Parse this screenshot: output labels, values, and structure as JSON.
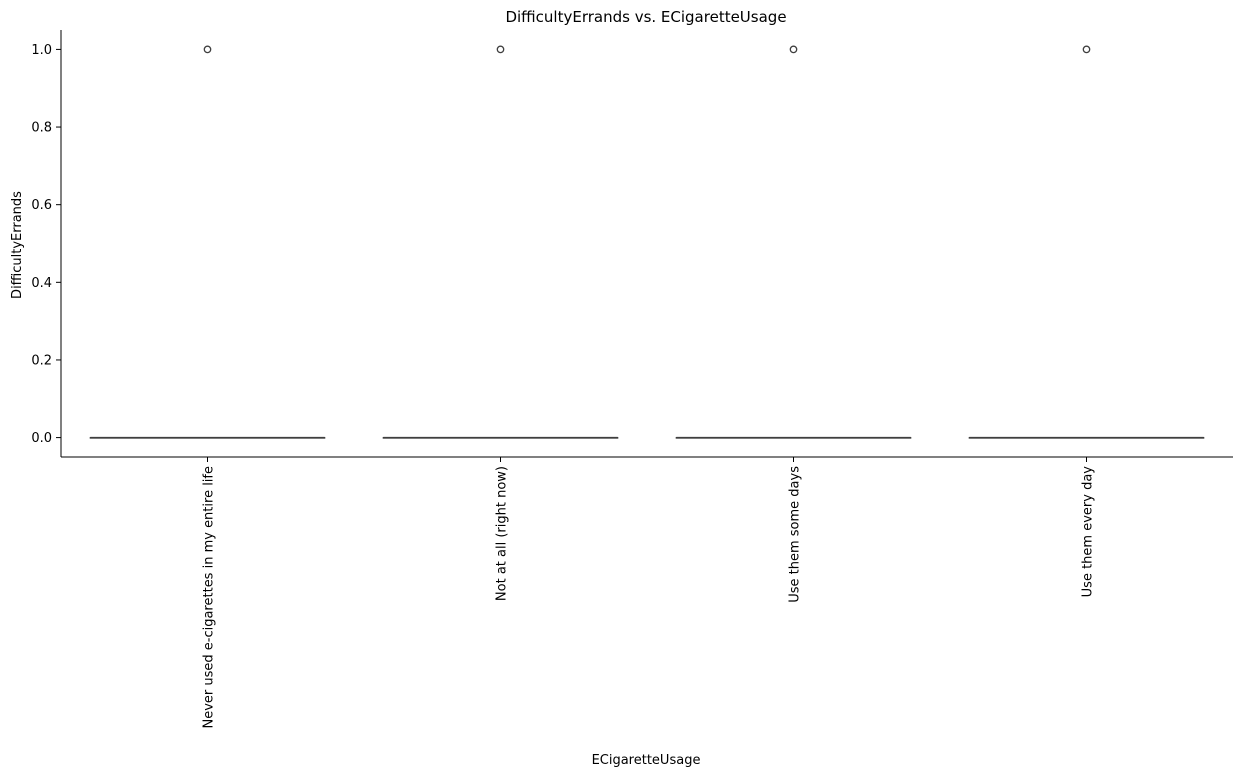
{
  "chart_data": {
    "type": "box",
    "title": "DifficultyErrands vs. ECigaretteUsage",
    "xlabel": "ECigaretteUsage",
    "ylabel": "DifficultyErrands",
    "ylim": [
      -0.05,
      1.05
    ],
    "yticks": [
      0.0,
      0.2,
      0.4,
      0.6,
      0.8,
      1.0
    ],
    "ytick_labels": [
      "0.0",
      "0.2",
      "0.4",
      "0.6",
      "0.8",
      "1.0"
    ],
    "categories": [
      "Never used e-cigarettes in my entire life",
      "Not at all (right now)",
      "Use them some days",
      "Use them every day"
    ],
    "boxes": [
      {
        "min": 0,
        "q1": 0,
        "median": 0,
        "q3": 0,
        "max": 0,
        "outliers": [
          1.0
        ]
      },
      {
        "min": 0,
        "q1": 0,
        "median": 0,
        "q3": 0,
        "max": 0,
        "outliers": [
          1.0
        ]
      },
      {
        "min": 0,
        "q1": 0,
        "median": 0,
        "q3": 0,
        "max": 0,
        "outliers": [
          1.0
        ]
      },
      {
        "min": 0,
        "q1": 0,
        "median": 0,
        "q3": 0,
        "max": 0,
        "outliers": [
          1.0
        ]
      }
    ],
    "box_color": "#3f3f3f",
    "outlier_color": "#3f3f3f",
    "grid": false
  }
}
